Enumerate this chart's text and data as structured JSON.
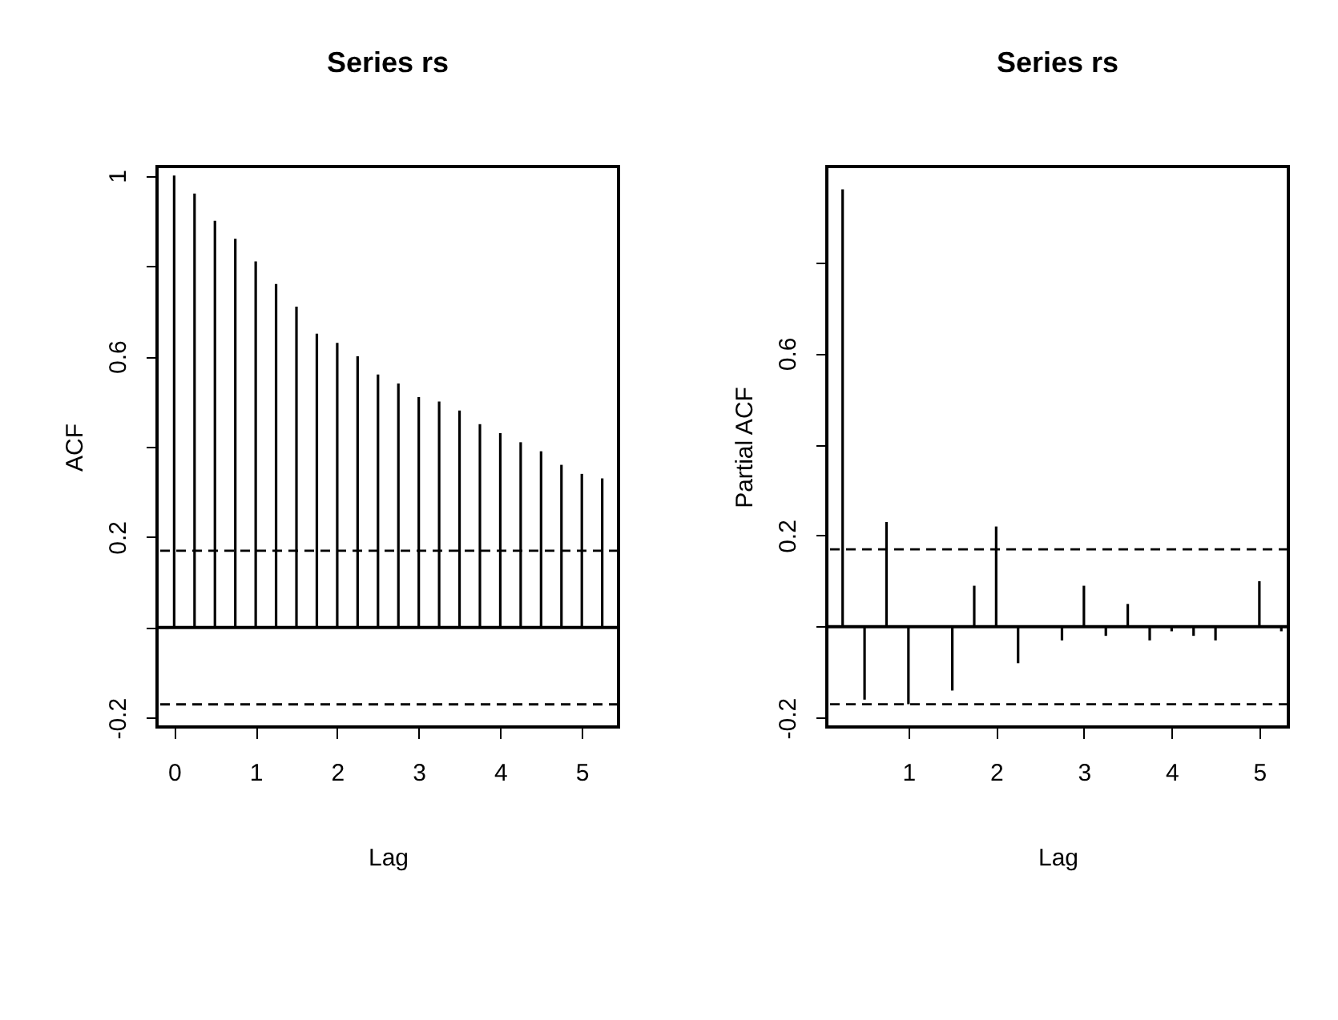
{
  "chart_data": [
    {
      "type": "bar",
      "title": "Series rs",
      "xlabel": "Lag",
      "ylabel": "ACF",
      "x": [
        0,
        0.25,
        0.5,
        0.75,
        1,
        1.25,
        1.5,
        1.75,
        2,
        2.25,
        2.5,
        2.75,
        3,
        3.25,
        3.5,
        3.75,
        4,
        4.25,
        4.5,
        4.75,
        5,
        5.25
      ],
      "series": [
        {
          "color": "#000000",
          "values": [
            1.0,
            0.96,
            0.9,
            0.86,
            0.81,
            0.76,
            0.71,
            0.65,
            0.63,
            0.6,
            0.56,
            0.54,
            0.51,
            0.5,
            0.48,
            0.45,
            0.43,
            0.41,
            0.39,
            0.36,
            0.34,
            0.33
          ]
        }
      ],
      "xlim": [
        -0.21,
        5.45
      ],
      "xticks": [
        0,
        1,
        2,
        3,
        4,
        5
      ],
      "ylim": [
        -0.22,
        1.02
      ],
      "yticks": [
        -0.2,
        {
          "value": 0,
          "label": null
        },
        0.2,
        {
          "value": 0.4,
          "label": null
        },
        0.6,
        {
          "value": 0.8,
          "label": null
        },
        1.0
      ],
      "ref_lines": [
        {
          "axis": "y",
          "value": 0,
          "line_style": "solid"
        },
        {
          "axis": "y",
          "value": 0.17,
          "line_style": "dashed"
        },
        {
          "axis": "y",
          "value": -0.17,
          "line_style": "dashed"
        }
      ],
      "grid": false
    },
    {
      "type": "bar",
      "title": "Series rs",
      "xlabel": "Lag",
      "ylabel": "Partial ACF",
      "x": [
        0.25,
        0.5,
        0.75,
        1,
        1.25,
        1.5,
        1.75,
        2,
        2.25,
        2.5,
        2.75,
        3,
        3.25,
        3.5,
        3.75,
        4,
        4.25,
        4.5,
        4.75,
        5,
        5.25
      ],
      "series": [
        {
          "color": "#000000",
          "values": [
            0.96,
            -0.16,
            0.23,
            -0.17,
            0,
            -0.14,
            0.09,
            0.22,
            -0.08,
            0,
            -0.03,
            0.09,
            -0.02,
            0.05,
            -0.03,
            -0.01,
            -0.02,
            -0.03,
            0,
            0.1,
            -0.01
          ]
        }
      ],
      "xlim": [
        0.07,
        5.33
      ],
      "xticks": [
        1,
        2,
        3,
        4,
        5
      ],
      "ylim": [
        -0.22,
        1.01
      ],
      "yticks": [
        -0.2,
        {
          "value": 0,
          "label": null
        },
        0.2,
        {
          "value": 0.4,
          "label": null
        },
        0.6,
        {
          "value": 0.8,
          "label": null
        }
      ],
      "ref_lines": [
        {
          "axis": "y",
          "value": 0,
          "line_style": "solid"
        },
        {
          "axis": "y",
          "value": 0.17,
          "line_style": "dashed"
        },
        {
          "axis": "y",
          "value": -0.17,
          "line_style": "dashed"
        }
      ],
      "grid": false
    }
  ]
}
